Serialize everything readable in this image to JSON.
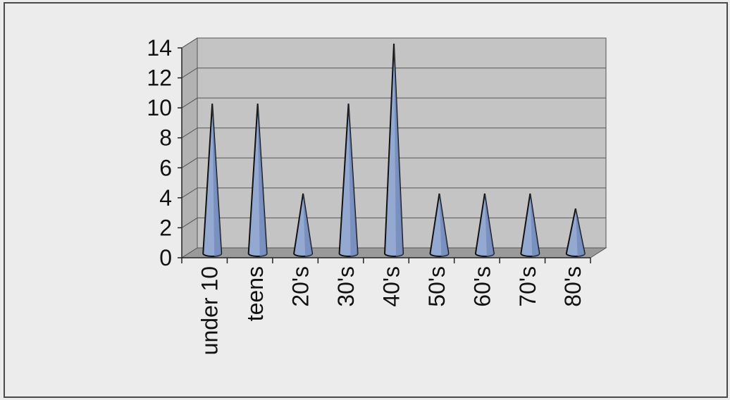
{
  "colors": {
    "page_bg": "#ececec",
    "frame": "#4a4a4a",
    "plot_back": "#c4c4c4",
    "floor": "#9a9a9a",
    "grid": "#555555",
    "cone_fill": "#94a9d2",
    "cone_shade": "#6f86b6",
    "outline": "#111111"
  },
  "chart_data": {
    "type": "bar",
    "style": "3d-cone",
    "title": "",
    "xlabel": "",
    "ylabel": "",
    "categories": [
      "under 10",
      "teens",
      "20's",
      "30's",
      "40's",
      "50's",
      "60's",
      "70's",
      "80's"
    ],
    "values": [
      10,
      10,
      4,
      10,
      14,
      4,
      4,
      4,
      3
    ],
    "ylim": [
      0,
      14
    ],
    "yticks": [
      0,
      2,
      4,
      6,
      8,
      10,
      12,
      14
    ],
    "grid": true,
    "legend": "none"
  }
}
